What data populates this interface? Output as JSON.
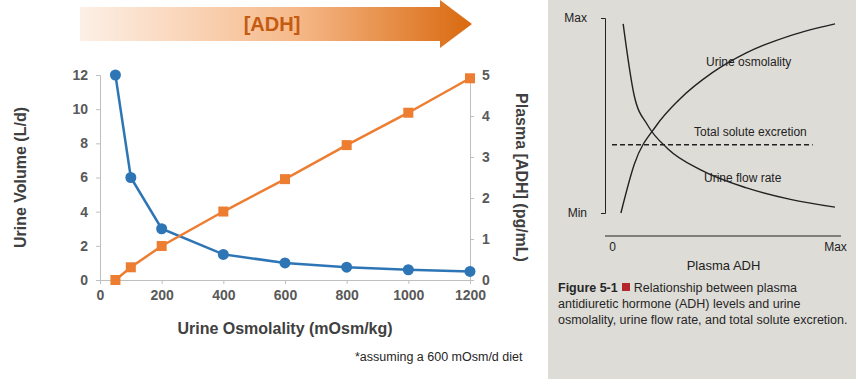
{
  "chart_data": [
    {
      "type": "line",
      "title": "[ADH]",
      "x_label": "Urine Osmolality (mOsm/kg)",
      "y_label": "Urine Volume (L/d)",
      "y2_label": "Plasma [ADH] (pg/mL)",
      "annotations": [
        "*assuming a 600 mOsm/d diet"
      ],
      "x": [
        50,
        100,
        200,
        400,
        600,
        800,
        1000,
        1200
      ],
      "xlim": [
        0,
        1200
      ],
      "xticks": [
        0,
        200,
        400,
        600,
        800,
        1000,
        1200
      ],
      "ylim": [
        0,
        12
      ],
      "yticks": [
        0,
        2,
        4,
        6,
        8,
        10,
        12
      ],
      "y2lim": [
        0,
        5
      ],
      "y2ticks": [
        0,
        1,
        2,
        3,
        4,
        5
      ],
      "grid": false,
      "series": [
        {
          "color": "#2e75b6",
          "marker": "circle",
          "line_style": "solid",
          "values": [
            12,
            6,
            3,
            1.5,
            1,
            0.75,
            0.6,
            0.5
          ]
        },
        {
          "color": "#ed7d31",
          "marker": "square",
          "line_style": "solid",
          "axis": "y2",
          "values": [
            0,
            0.31,
            0.83,
            1.67,
            2.46,
            3.29,
            4.08,
            4.92
          ]
        }
      ]
    },
    {
      "type": "line",
      "x_label": "Plasma ADH",
      "caption_label": "Figure 5-1",
      "caption": "Relationship between plasma antidiuretic hormone (ADH) levels and urine osmolality, urine flow rate, and total solute excretion.",
      "xlim": [
        0,
        1
      ],
      "xticks": [
        0,
        {
          "value": 1,
          "label": "Max"
        }
      ],
      "ylim": [
        0,
        1
      ],
      "yticks": [
        {
          "value": 0,
          "label": "Min"
        },
        {
          "value": 1,
          "label": "Max"
        }
      ],
      "grid": false,
      "series": [
        {
          "name": "Urine osmolality",
          "color": "#222222",
          "line_style": "solid",
          "x": [
            0.04,
            0.1,
            0.2,
            0.3,
            0.45,
            0.6,
            0.8,
            1.0
          ],
          "values": [
            0.0,
            0.25,
            0.45,
            0.58,
            0.72,
            0.82,
            0.91,
            0.97
          ]
        },
        {
          "name": "Total solute excretion",
          "color": "#222222",
          "line_style": "dashed",
          "x": [
            0,
            0.9
          ],
          "values": [
            0.35,
            0.35
          ]
        },
        {
          "name": "Urine flow rate",
          "color": "#222222",
          "line_style": "solid",
          "x": [
            0.05,
            0.1,
            0.16,
            0.25,
            0.4,
            0.6,
            0.8,
            1.0
          ],
          "values": [
            0.97,
            0.6,
            0.45,
            0.33,
            0.22,
            0.13,
            0.07,
            0.03
          ]
        }
      ]
    }
  ]
}
